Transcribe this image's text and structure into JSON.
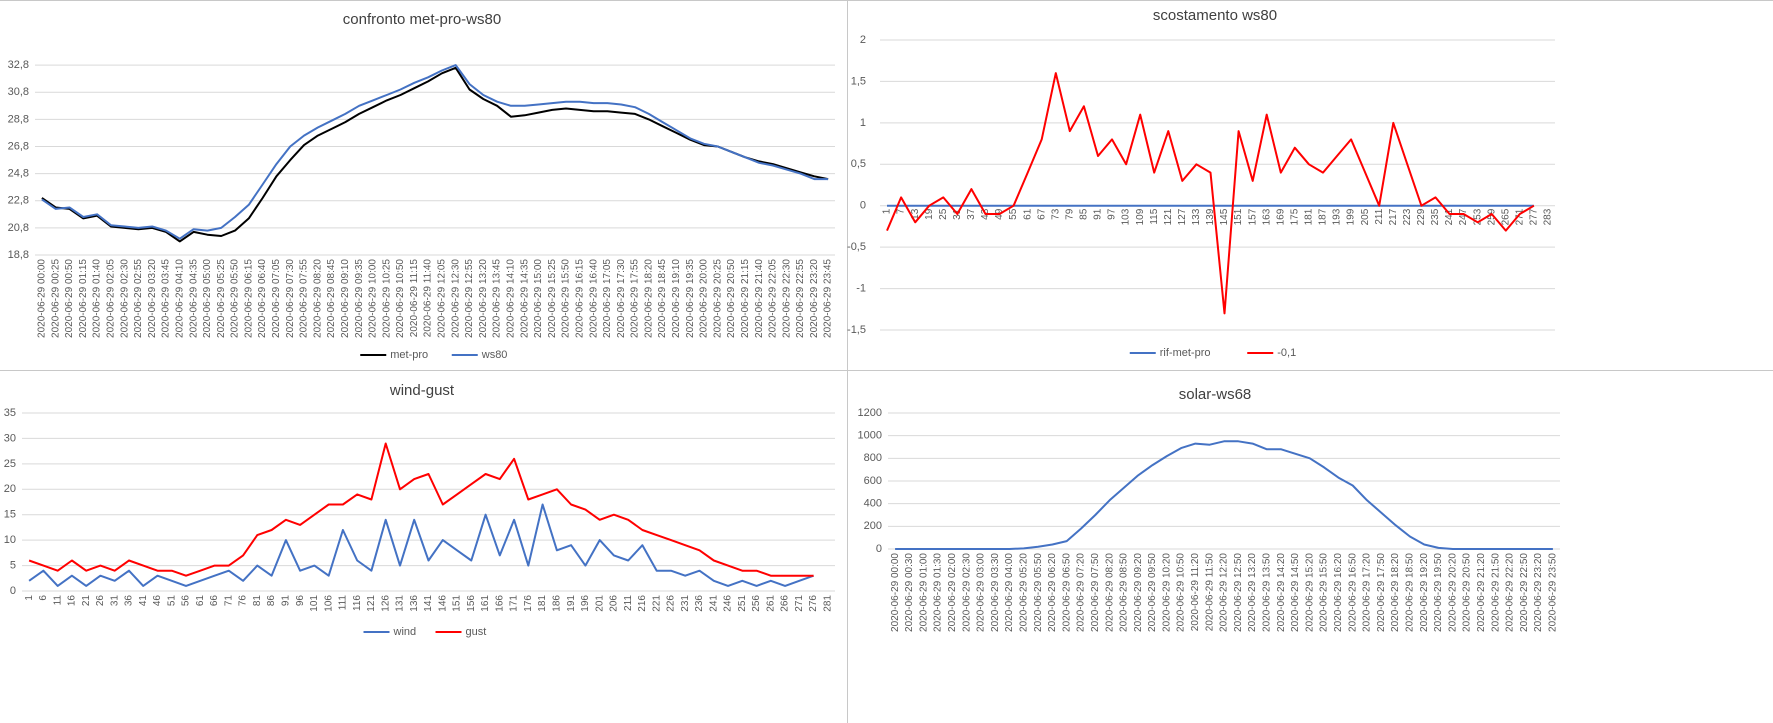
{
  "chart_data": [
    {
      "type": "line",
      "title": "confronto met-pro-ws80",
      "categories": [
        "2020-06-29 00:00",
        "2020-06-29 00:25",
        "2020-06-29 00:50",
        "2020-06-29 01:15",
        "2020-06-29 01:40",
        "2020-06-29 02:05",
        "2020-06-29 02:30",
        "2020-06-29 02:55",
        "2020-06-29 03:20",
        "2020-06-29 03:45",
        "2020-06-29 04:10",
        "2020-06-29 04:35",
        "2020-06-29 05:00",
        "2020-06-29 05:25",
        "2020-06-29 05:50",
        "2020-06-29 06:15",
        "2020-06-29 06:40",
        "2020-06-29 07:05",
        "2020-06-29 07:30",
        "2020-06-29 07:55",
        "2020-06-29 08:20",
        "2020-06-29 08:45",
        "2020-06-29 09:10",
        "2020-06-29 09:35",
        "2020-06-29 10:00",
        "2020-06-29 10:25",
        "2020-06-29 10:50",
        "2020-06-29 11:15",
        "2020-06-29 11:40",
        "2020-06-29 12:05",
        "2020-06-29 12:30",
        "2020-06-29 12:55",
        "2020-06-29 13:20",
        "2020-06-29 13:45",
        "2020-06-29 14:10",
        "2020-06-29 14:35",
        "2020-06-29 15:00",
        "2020-06-29 15:25",
        "2020-06-29 15:50",
        "2020-06-29 16:15",
        "2020-06-29 16:40",
        "2020-06-29 17:05",
        "2020-06-29 17:30",
        "2020-06-29 17:55",
        "2020-06-29 18:20",
        "2020-06-29 18:45",
        "2020-06-29 19:10",
        "2020-06-29 19:35",
        "2020-06-29 20:00",
        "2020-06-29 20:25",
        "2020-06-29 20:50",
        "2020-06-29 21:15",
        "2020-06-29 21:40",
        "2020-06-29 22:05",
        "2020-06-29 22:30",
        "2020-06-29 22:55",
        "2020-06-29 23:20",
        "2020-06-29 23:45"
      ],
      "series": [
        {
          "name": "met-pro",
          "color": "#000000",
          "values": [
            23.0,
            22.3,
            22.2,
            21.5,
            21.7,
            20.9,
            20.8,
            20.7,
            20.8,
            20.5,
            19.8,
            20.5,
            20.3,
            20.2,
            20.6,
            21.5,
            23.0,
            24.6,
            25.8,
            26.9,
            27.6,
            28.1,
            28.6,
            29.2,
            29.7,
            30.2,
            30.6,
            31.1,
            31.6,
            32.2,
            32.6,
            31.0,
            30.3,
            29.8,
            29.0,
            29.1,
            29.3,
            29.5,
            29.6,
            29.5,
            29.4,
            29.4,
            29.3,
            29.2,
            28.8,
            28.3,
            27.8,
            27.3,
            26.9,
            26.8,
            26.4,
            26.0,
            25.7,
            25.5,
            25.2,
            24.9,
            24.6,
            24.4
          ]
        },
        {
          "name": "ws80",
          "color": "#4472c4",
          "values": [
            22.9,
            22.2,
            22.3,
            21.6,
            21.8,
            21.0,
            20.9,
            20.8,
            20.9,
            20.6,
            20.0,
            20.7,
            20.6,
            20.8,
            21.6,
            22.5,
            24.0,
            25.5,
            26.8,
            27.6,
            28.2,
            28.7,
            29.2,
            29.8,
            30.2,
            30.6,
            31.0,
            31.5,
            31.9,
            32.4,
            32.8,
            31.4,
            30.6,
            30.1,
            29.8,
            29.8,
            29.9,
            30.0,
            30.1,
            30.1,
            30.0,
            30.0,
            29.9,
            29.7,
            29.2,
            28.6,
            28.0,
            27.4,
            27.0,
            26.8,
            26.4,
            26.0,
            25.6,
            25.4,
            25.1,
            24.8,
            24.4,
            24.4
          ]
        }
      ],
      "ylim": [
        18.8,
        34.8
      ],
      "yticks": [
        {
          "value": 18.8,
          "label": "18,8"
        },
        {
          "value": 20.8,
          "label": "20,8"
        },
        {
          "value": 22.8,
          "label": "22,8"
        },
        {
          "value": 24.8,
          "label": "24,8"
        },
        {
          "value": 26.8,
          "label": "26,8"
        },
        {
          "value": 28.8,
          "label": "28,8"
        },
        {
          "value": 30.8,
          "label": "30,8"
        },
        {
          "value": 32.8,
          "label": "32,8"
        }
      ],
      "grid": true
    },
    {
      "type": "line",
      "title": "scostamento ws80",
      "categories": [
        1,
        7,
        13,
        19,
        25,
        31,
        37,
        43,
        49,
        55,
        61,
        67,
        73,
        79,
        85,
        91,
        97,
        103,
        109,
        115,
        121,
        127,
        133,
        139,
        145,
        151,
        157,
        163,
        169,
        175,
        181,
        187,
        193,
        199,
        205,
        211,
        217,
        223,
        229,
        235,
        241,
        247,
        253,
        259,
        265,
        271,
        277,
        283
      ],
      "series": [
        {
          "name": "rif-met-pro",
          "color": "#4472c4",
          "values": [
            0,
            0,
            0,
            0,
            0,
            0,
            0,
            0,
            0,
            0,
            0,
            0,
            0,
            0,
            0,
            0,
            0,
            0,
            0,
            0,
            0,
            0,
            0,
            0,
            0,
            0,
            0,
            0,
            0,
            0,
            0,
            0,
            0,
            0,
            0,
            0,
            0,
            0,
            0,
            0,
            0,
            0,
            0,
            0,
            0,
            0,
            0,
            null
          ]
        },
        {
          "name": "-0,1",
          "color": "#ff0000",
          "values": [
            -0.3,
            0.1,
            -0.2,
            0,
            0.1,
            -0.1,
            0.2,
            -0.1,
            -0.1,
            0,
            0.4,
            0.8,
            1.6,
            0.9,
            1.2,
            0.6,
            0.8,
            0.5,
            1.1,
            0.4,
            0.9,
            0.3,
            0.5,
            0.4,
            -1.3,
            0.9,
            0.3,
            1.1,
            0.4,
            0.7,
            0.5,
            0.4,
            0.6,
            0.8,
            0.4,
            0,
            1.0,
            0.5,
            0,
            0.1,
            -0.1,
            -0.1,
            -0.2,
            -0.1,
            -0.3,
            -0.1,
            0,
            null
          ]
        }
      ],
      "ylim": [
        -1.5,
        2
      ],
      "yticks": [
        {
          "value": -1.5,
          "label": "-1,5"
        },
        -1,
        {
          "value": -0.5,
          "label": "-0,5"
        },
        0,
        {
          "value": 0.5,
          "label": "0,5"
        },
        1,
        {
          "value": 1.5,
          "label": "1,5"
        },
        2
      ],
      "grid": true
    },
    {
      "type": "line",
      "title": "wind-gust",
      "categories": [
        1,
        6,
        11,
        16,
        21,
        26,
        31,
        36,
        41,
        46,
        51,
        56,
        61,
        66,
        71,
        76,
        81,
        86,
        91,
        96,
        101,
        106,
        111,
        116,
        121,
        126,
        131,
        136,
        141,
        146,
        151,
        156,
        161,
        166,
        171,
        176,
        181,
        186,
        191,
        196,
        201,
        206,
        211,
        216,
        221,
        226,
        231,
        236,
        241,
        246,
        251,
        256,
        261,
        266,
        271,
        276,
        281
      ],
      "series": [
        {
          "name": "wind",
          "color": "#4472c4",
          "values": [
            2,
            4,
            1,
            3,
            1,
            3,
            2,
            4,
            1,
            3,
            2,
            1,
            2,
            3,
            4,
            2,
            5,
            3,
            10,
            4,
            5,
            3,
            12,
            6,
            4,
            14,
            5,
            14,
            6,
            10,
            8,
            6,
            15,
            7,
            14,
            5,
            17,
            8,
            9,
            5,
            10,
            7,
            6,
            9,
            4,
            4,
            3,
            4,
            2,
            1,
            2,
            1,
            2,
            1,
            2,
            3,
            null
          ]
        },
        {
          "name": "gust",
          "color": "#ff0000",
          "values": [
            6,
            5,
            4,
            6,
            4,
            5,
            4,
            6,
            5,
            4,
            4,
            3,
            4,
            5,
            5,
            7,
            11,
            12,
            14,
            13,
            15,
            17,
            17,
            19,
            18,
            29,
            20,
            22,
            23,
            17,
            19,
            21,
            23,
            22,
            26,
            18,
            19,
            20,
            17,
            16,
            14,
            15,
            14,
            12,
            11,
            10,
            9,
            8,
            6,
            5,
            4,
            4,
            3,
            3,
            3,
            3,
            null
          ]
        }
      ],
      "ylim": [
        0,
        35
      ],
      "yticks": [
        0,
        5,
        10,
        15,
        20,
        25,
        30,
        35
      ],
      "grid": true
    },
    {
      "type": "line",
      "title": "solar-ws68",
      "categories": [
        "2020-06-29 00:00",
        "2020-06-29 00:30",
        "2020-06-29 01:00",
        "2020-06-29 01:30",
        "2020-06-29 02:00",
        "2020-06-29 02:30",
        "2020-06-29 03:00",
        "2020-06-29 03:30",
        "2020-06-29 04:00",
        "2020-06-29 05:20",
        "2020-06-29 05:50",
        "2020-06-29 06:20",
        "2020-06-29 06:50",
        "2020-06-29 07:20",
        "2020-06-29 07:50",
        "2020-06-29 08:20",
        "2020-06-29 08:50",
        "2020-06-29 09:20",
        "2020-06-29 09:50",
        "2020-06-29 10:20",
        "2020-06-29 10:50",
        "2020-06-29 11:20",
        "2020-06-29 11:50",
        "2020-06-29 12:20",
        "2020-06-29 12:50",
        "2020-06-29 13:20",
        "2020-06-29 13:50",
        "2020-06-29 14:20",
        "2020-06-29 14:50",
        "2020-06-29 15:20",
        "2020-06-29 15:50",
        "2020-06-29 16:20",
        "2020-06-29 16:50",
        "2020-06-29 17:20",
        "2020-06-29 17:50",
        "2020-06-29 18:20",
        "2020-06-29 18:50",
        "2020-06-29 19:20",
        "2020-06-29 19:50",
        "2020-06-29 20:20",
        "2020-06-29 20:50",
        "2020-06-29 21:20",
        "2020-06-29 21:50",
        "2020-06-29 22:20",
        "2020-06-29 22:50",
        "2020-06-29 23:20",
        "2020-06-29 23:50"
      ],
      "series": [
        {
          "name": "solar",
          "color": "#4472c4",
          "values": [
            0,
            0,
            0,
            0,
            0,
            0,
            0,
            0,
            0,
            5,
            20,
            40,
            70,
            180,
            300,
            430,
            540,
            650,
            740,
            820,
            890,
            930,
            920,
            950,
            950,
            930,
            880,
            880,
            840,
            800,
            720,
            630,
            560,
            430,
            320,
            210,
            110,
            40,
            10,
            0,
            0,
            0,
            0,
            0,
            0,
            0,
            0
          ]
        }
      ],
      "ylim": [
        0,
        1200
      ],
      "yticks": [
        0,
        200,
        400,
        600,
        800,
        1000,
        1200
      ],
      "grid": true
    }
  ]
}
